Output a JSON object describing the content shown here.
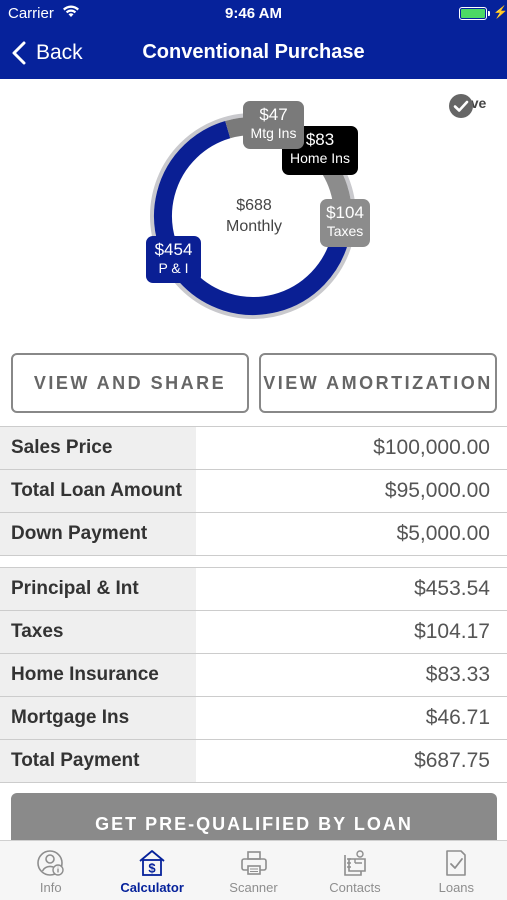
{
  "status_bar": {
    "carrier": "Carrier",
    "time": "9:46 AM"
  },
  "nav": {
    "back_label": "Back",
    "title": "Conventional Purchase"
  },
  "donut": {
    "center_amount": "$688",
    "center_label": "Monthly",
    "colors": {
      "pi": "#0a1f94",
      "taxes": "#8c8c8c",
      "home_ins": "#000000",
      "mtg_ins": "#7a7a7a"
    },
    "segments": [
      {
        "key": "pi",
        "amount": "$454",
        "label": "P & I",
        "value": 453.54
      },
      {
        "key": "taxes",
        "amount": "$104",
        "label": "Taxes",
        "value": 104.17
      },
      {
        "key": "home_ins",
        "amount": "$83",
        "label": "Home Ins",
        "value": 83.33
      },
      {
        "key": "mtg_ins",
        "amount": "$47",
        "label": "Mtg Ins",
        "value": 46.71
      }
    ]
  },
  "save_label": "Save",
  "buttons": {
    "view_share": "VIEW AND SHARE",
    "view_amortization": "VIEW AMORTIZATION",
    "prequalify": "GET PRE-QUALIFIED BY LOAN"
  },
  "loan_rows": [
    {
      "label": "Sales Price",
      "value": "$100,000.00"
    },
    {
      "label": "Total Loan Amount",
      "value": "$95,000.00"
    },
    {
      "label": "Down Payment",
      "value": "$5,000.00"
    }
  ],
  "payment_rows": [
    {
      "label": "Principal & Int",
      "value": "$453.54"
    },
    {
      "label": "Taxes",
      "value": "$104.17"
    },
    {
      "label": "Home Insurance",
      "value": "$83.33"
    },
    {
      "label": "Mortgage Ins",
      "value": "$46.71"
    },
    {
      "label": "Total Payment",
      "value": "$687.75"
    }
  ],
  "tabs": [
    {
      "label": "Info",
      "icon": "info-person-icon",
      "active": false
    },
    {
      "label": "Calculator",
      "icon": "calculator-dollar-icon",
      "active": true
    },
    {
      "label": "Scanner",
      "icon": "printer-icon",
      "active": false
    },
    {
      "label": "Contacts",
      "icon": "contacts-icon",
      "active": false
    },
    {
      "label": "Loans",
      "icon": "loans-document-icon",
      "active": false
    }
  ],
  "accent_color": "#06229b"
}
